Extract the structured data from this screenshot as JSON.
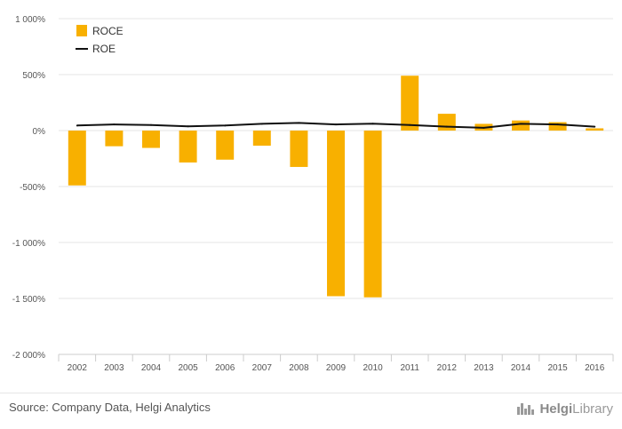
{
  "chart_data": {
    "type": "bar",
    "categories": [
      "2002",
      "2003",
      "2004",
      "2005",
      "2006",
      "2007",
      "2008",
      "2009",
      "2010",
      "2011",
      "2012",
      "2013",
      "2014",
      "2015",
      "2016"
    ],
    "series": [
      {
        "name": "ROCE",
        "type": "bar",
        "color": "#f8b000",
        "values": [
          -490,
          -140,
          -155,
          -285,
          -260,
          -135,
          -325,
          -1480,
          -1490,
          490,
          150,
          60,
          90,
          75,
          20
        ]
      },
      {
        "name": "ROE",
        "type": "line",
        "color": "#111111",
        "values": [
          45,
          55,
          50,
          38,
          45,
          60,
          68,
          55,
          62,
          50,
          35,
          25,
          60,
          55,
          35
        ]
      }
    ],
    "ylim": [
      -2000,
      1000
    ],
    "yticks": [
      1000,
      500,
      0,
      -500,
      -1000,
      -1500,
      -2000
    ],
    "ytick_labels": [
      "1 000%",
      "500%",
      "0%",
      "-500%",
      "-1 000%",
      "-1 500%",
      "-2 000%"
    ],
    "grid": true,
    "legend_position": "top-left"
  },
  "footer": {
    "source": "Source: Company Data, Helgi Analytics",
    "brand_prefix": "Helgi",
    "brand_suffix": "Library"
  }
}
